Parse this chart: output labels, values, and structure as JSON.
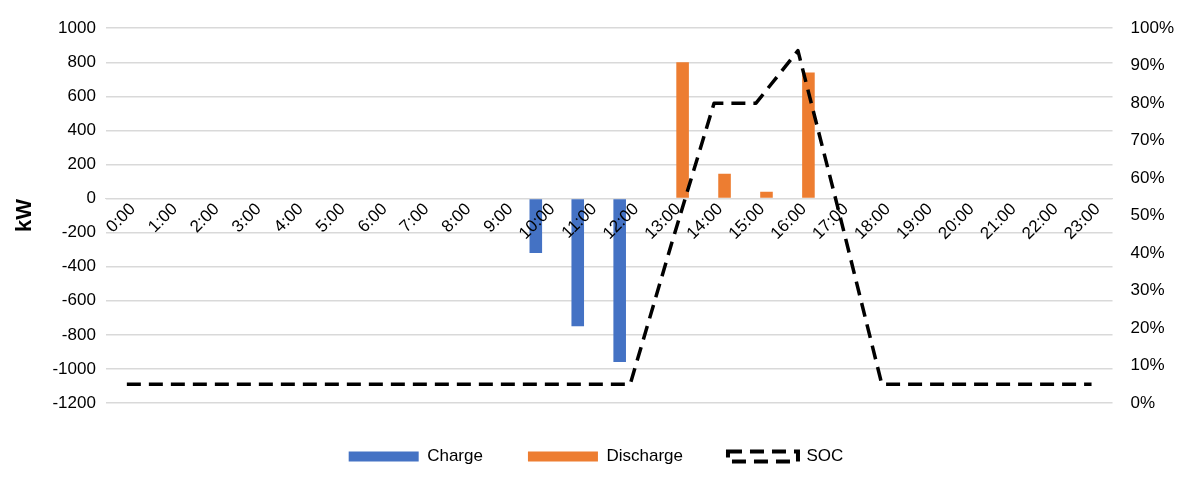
{
  "chart_data": {
    "type": "bar",
    "ylabel": "kW",
    "categories": [
      "0:00",
      "1:00",
      "2:00",
      "3:00",
      "4:00",
      "5:00",
      "6:00",
      "7:00",
      "8:00",
      "9:00",
      "10:00",
      "11:00",
      "12:00",
      "13:00",
      "14:00",
      "15:00",
      "16:00",
      "17:00",
      "18:00",
      "19:00",
      "20:00",
      "21:00",
      "22:00",
      "23:00"
    ],
    "series": [
      {
        "name": "Charge",
        "color": "#4472c4",
        "values": [
          null,
          null,
          null,
          null,
          null,
          null,
          null,
          null,
          null,
          null,
          -320,
          -750,
          -960,
          null,
          null,
          null,
          null,
          null,
          null,
          null,
          null,
          null,
          null,
          null
        ]
      },
      {
        "name": "Discharge",
        "color": "#ed7d31",
        "values": [
          null,
          null,
          null,
          null,
          null,
          null,
          null,
          null,
          null,
          null,
          null,
          null,
          null,
          800,
          145,
          40,
          740,
          null,
          null,
          null,
          null,
          null,
          null,
          null
        ]
      },
      {
        "name": "SOC",
        "type": "line",
        "axis": "y2",
        "color": "#000000",
        "line_style": "dashed",
        "marker": "none",
        "values": [
          5,
          5,
          5,
          5,
          5,
          5,
          5,
          5,
          5,
          5,
          5,
          5,
          5,
          43,
          80,
          80,
          94,
          50,
          5,
          5,
          5,
          5,
          5,
          5
        ]
      }
    ],
    "ylim": [
      -1200,
      1000
    ],
    "yticks": [
      -1200,
      -1000,
      -800,
      -600,
      -400,
      -200,
      0,
      200,
      400,
      600,
      800,
      1000
    ],
    "y2lim": [
      0,
      100
    ],
    "y2ticks": [
      {
        "value": 0,
        "label": "0%"
      },
      {
        "value": 10,
        "label": "10%"
      },
      {
        "value": 20,
        "label": "20%"
      },
      {
        "value": 30,
        "label": "30%"
      },
      {
        "value": 40,
        "label": "40%"
      },
      {
        "value": 50,
        "label": "50%"
      },
      {
        "value": 60,
        "label": "60%"
      },
      {
        "value": 70,
        "label": "70%"
      },
      {
        "value": 80,
        "label": "80%"
      },
      {
        "value": 90,
        "label": "90%"
      },
      {
        "value": 100,
        "label": "100%"
      }
    ],
    "grid": "y",
    "legend": "bottom"
  }
}
